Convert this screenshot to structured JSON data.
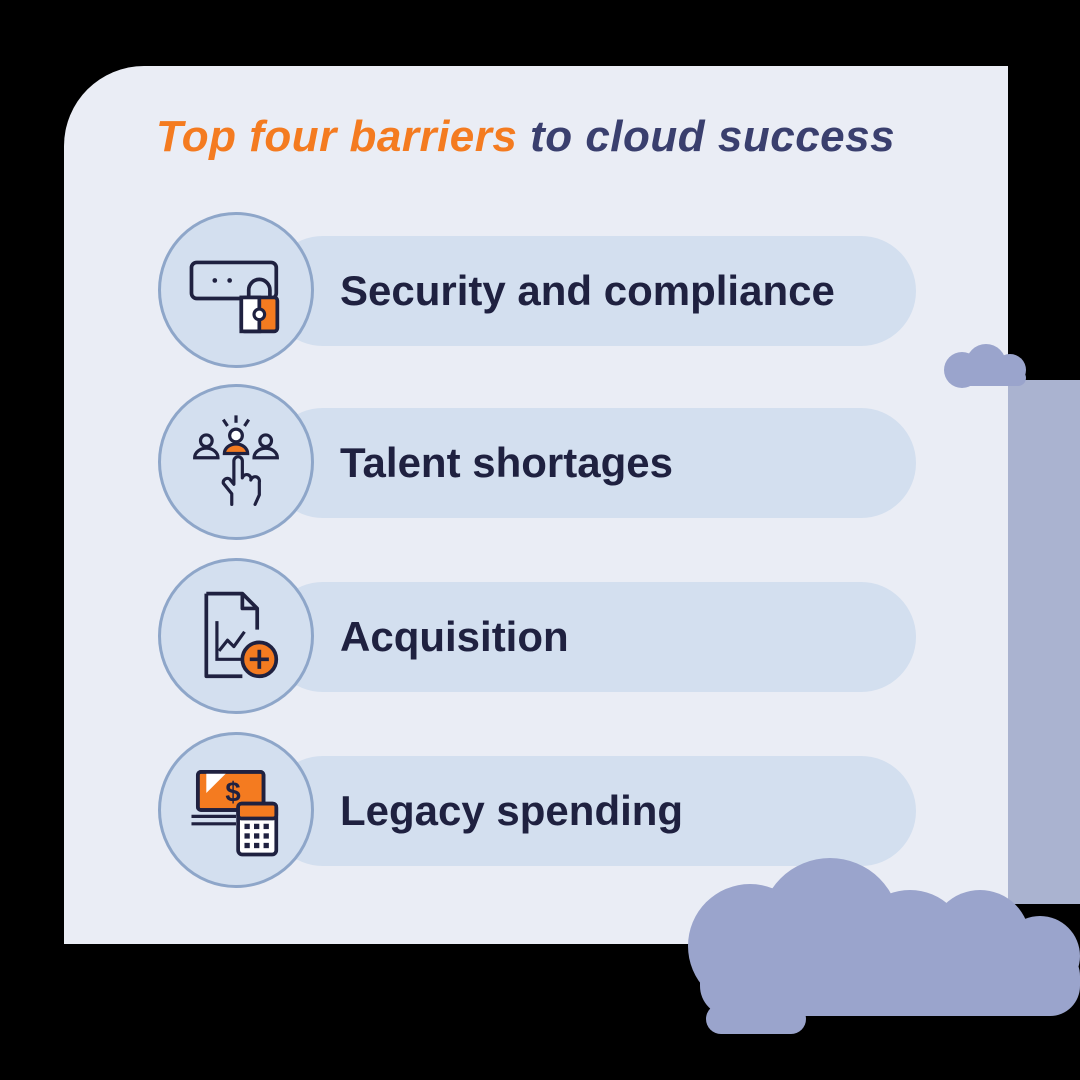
{
  "title": {
    "highlight": "Top four barriers",
    "rest": " to cloud success"
  },
  "colors": {
    "accent": "#f47b20",
    "title_dark": "#3a3f6e",
    "label": "#1f2140",
    "pill": "#d3dfef",
    "card": "#eaedf5",
    "cloud": "#9aa4cc"
  },
  "items": [
    {
      "label": "Security and compliance",
      "icon": "password-lock-icon"
    },
    {
      "label": "Talent shortages",
      "icon": "team-select-icon"
    },
    {
      "label": "Acquisition",
      "icon": "chart-document-add-icon"
    },
    {
      "label": "Legacy spending",
      "icon": "money-calculator-icon"
    }
  ]
}
